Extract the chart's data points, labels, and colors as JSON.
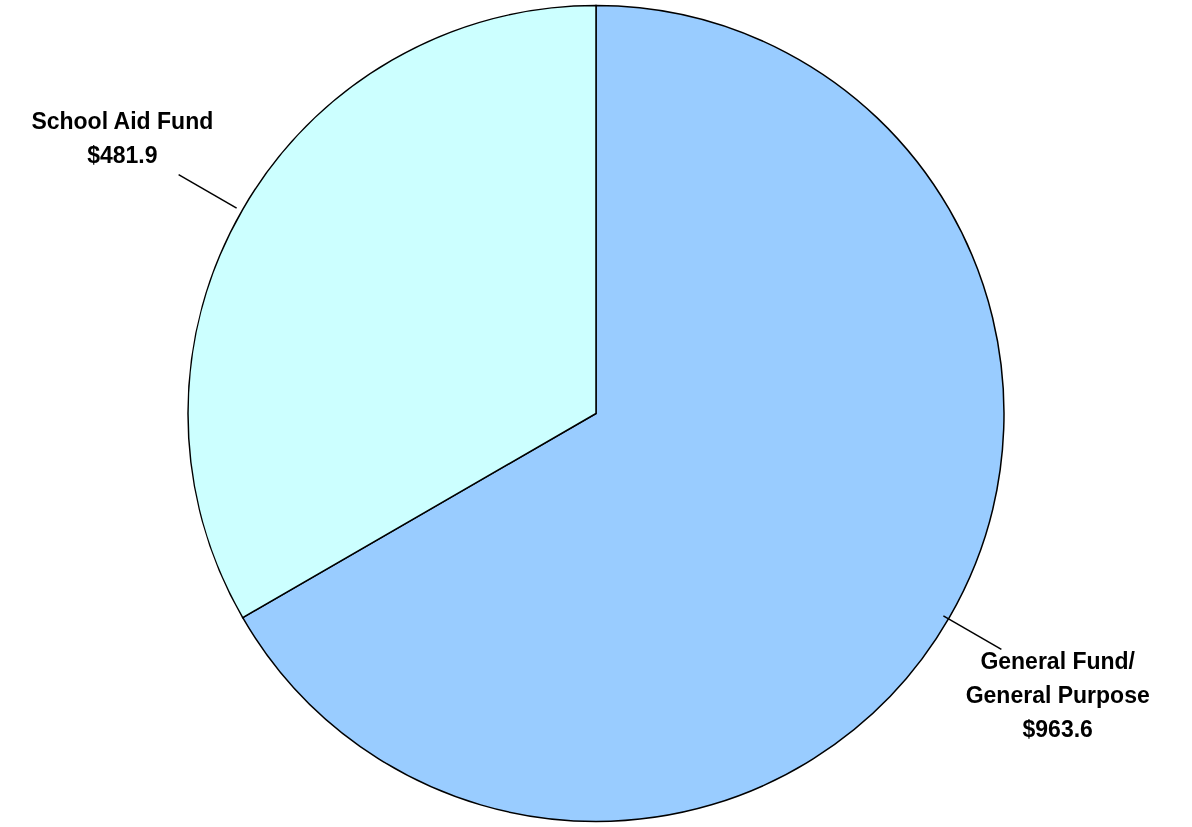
{
  "chart_data": {
    "type": "pie",
    "categories": [
      "General Fund/\nGeneral Purpose",
      "School Aid Fund"
    ],
    "values": [
      963.6,
      481.9
    ],
    "colors": [
      "#99ccff",
      "#ccffff"
    ],
    "value_labels": [
      "$963.6",
      "$481.9"
    ]
  }
}
